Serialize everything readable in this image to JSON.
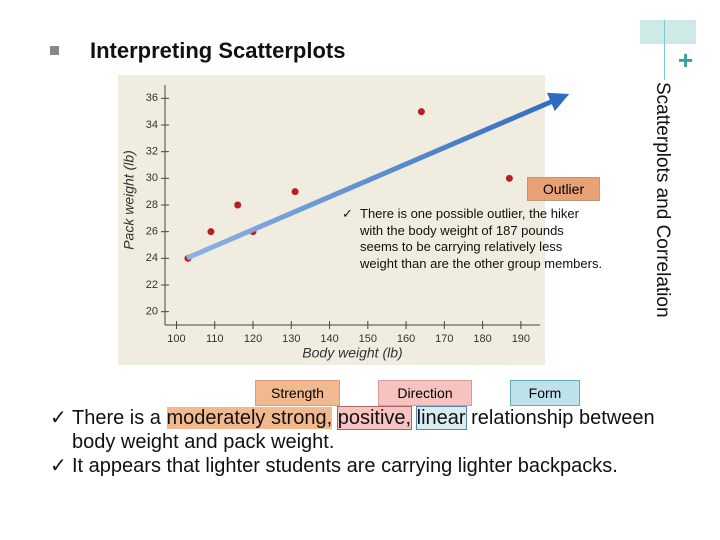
{
  "slide": {
    "title": "Interpreting Scatterplots",
    "side_title": "Scatterplots and Correlation",
    "callout": "Outlier",
    "note_lines": [
      "There is one possible outlier, the hiker",
      "with the body weight of 187 pounds",
      "seems to be carrying relatively less",
      "weight than are the other group members."
    ],
    "tags": [
      "Strength",
      "Direction",
      "Form"
    ],
    "bullet1": {
      "lead": "There is a",
      "strength": "moderately strong,",
      "direction": "positive,",
      "form": "linear",
      "rest": "relationship between body weight and pack weight."
    },
    "bullet2": "It appears that lighter students are carrying lighter backpacks."
  },
  "chart_data": {
    "type": "scatter",
    "x_label": "Body weight (lb)",
    "y_label": "Pack weight (lb)",
    "x": [
      103,
      109,
      116,
      120,
      131,
      164,
      187
    ],
    "values": [
      24,
      26,
      28,
      26,
      29,
      35,
      30
    ],
    "color": "#b52020",
    "xlim": [
      97,
      195
    ],
    "ylim": [
      19,
      37
    ],
    "xticks": [
      100,
      110,
      120,
      130,
      140,
      150,
      160,
      170,
      180,
      190
    ],
    "yticks": [
      20,
      22,
      24,
      26,
      28,
      30,
      32,
      34,
      36
    ]
  }
}
